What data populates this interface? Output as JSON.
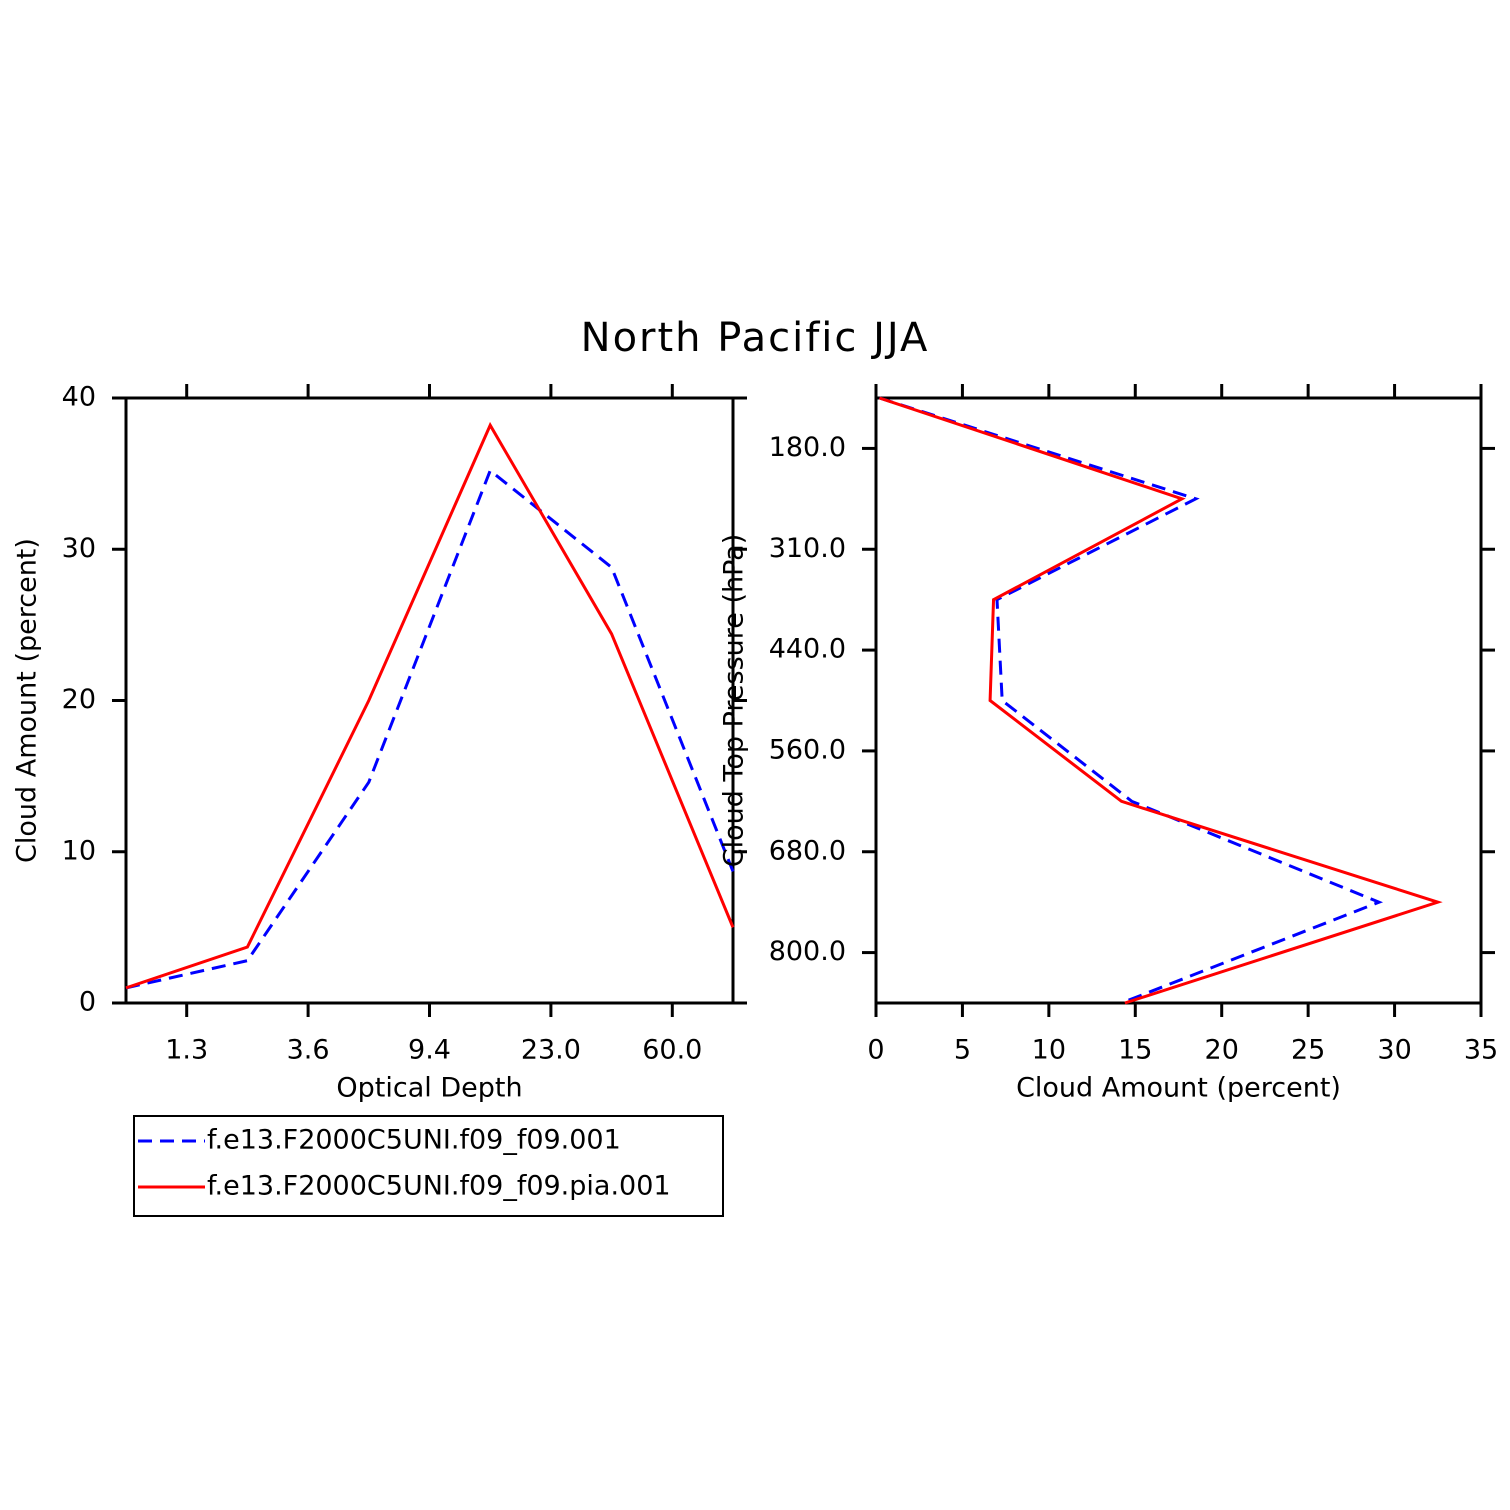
{
  "title": "North Pacific JJA",
  "chart_data": [
    {
      "type": "line",
      "xlabel": "Optical Depth",
      "ylabel": "Cloud Amount (percent)",
      "xlim": [
        0,
        5
      ],
      "xticks": [
        {
          "value": 0.5,
          "label": "1.3"
        },
        {
          "value": 1.5,
          "label": "3.6"
        },
        {
          "value": 2.5,
          "label": "9.4"
        },
        {
          "value": 3.5,
          "label": "23.0"
        },
        {
          "value": 4.5,
          "label": "60.0"
        }
      ],
      "ylim": [
        0,
        40
      ],
      "yticks": [
        0,
        10,
        20,
        30,
        40
      ],
      "legend": "below",
      "series": [
        {
          "name": "f.e13.F2000C5UNI.f09_f09.001",
          "color": "#0000ff",
          "dash": true,
          "values": [
            1.0,
            2.8,
            14.6,
            35.2,
            28.8,
            8.7
          ]
        },
        {
          "name": "f.e13.F2000C5UNI.f09_f09.pia.001",
          "color": "#ff0000",
          "dash": false,
          "values": [
            1.0,
            3.7,
            20.0,
            38.2,
            24.4,
            5.0
          ]
        }
      ]
    },
    {
      "type": "line",
      "orientation": "horizontal",
      "xlabel": "Cloud Amount (percent)",
      "ylabel": "Cloud Top Pressure (hPa)",
      "xlim": [
        0,
        35
      ],
      "xticks": [
        0,
        5,
        10,
        15,
        20,
        25,
        30,
        35
      ],
      "ylim": [
        0,
        6
      ],
      "y_inverted": true,
      "yticks": [
        {
          "value": 0.5,
          "label": "180.0"
        },
        {
          "value": 1.5,
          "label": "310.0"
        },
        {
          "value": 2.5,
          "label": "440.0"
        },
        {
          "value": 3.5,
          "label": "560.0"
        },
        {
          "value": 4.5,
          "label": "680.0"
        },
        {
          "value": 5.5,
          "label": "800.0"
        }
      ],
      "series": [
        {
          "color": "#0000ff",
          "dash": true,
          "values": [
            0.2,
            18.5,
            7.0,
            7.3,
            14.8,
            29.1,
            14.2
          ]
        },
        {
          "color": "#ff0000",
          "dash": false,
          "values": [
            0.2,
            17.7,
            6.8,
            6.6,
            14.2,
            32.5,
            14.4
          ]
        }
      ]
    }
  ]
}
